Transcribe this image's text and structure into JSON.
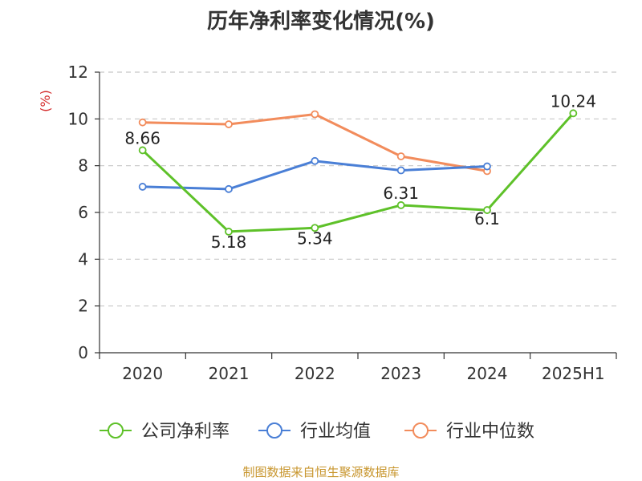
{
  "title": "历年净利率变化情况(%)",
  "source": "制图数据来自恒生聚源数据库",
  "chart_data": {
    "type": "line",
    "title": "历年净利率变化情况(%)",
    "ylabel": "(%)",
    "categories": [
      "2020",
      "2021",
      "2022",
      "2023",
      "2024",
      "2025H1"
    ],
    "ylim": [
      0,
      12
    ],
    "yticks": [
      0,
      2,
      4,
      6,
      8,
      10,
      12
    ],
    "grid": true,
    "legend_position": "bottom",
    "series": [
      {
        "name": "公司净利率",
        "color": "#5ec129",
        "values": [
          8.66,
          5.18,
          5.34,
          6.31,
          6.1,
          10.24
        ],
        "labels": [
          "8.66",
          "5.18",
          "5.34",
          "6.31",
          "6.1",
          "10.24"
        ]
      },
      {
        "name": "行业均值",
        "color": "#4a7fd6",
        "values": [
          7.1,
          7.0,
          8.2,
          7.8,
          7.97,
          null
        ]
      },
      {
        "name": "行业中位数",
        "color": "#f28c5c",
        "values": [
          9.85,
          9.77,
          10.2,
          8.4,
          7.77,
          null
        ]
      }
    ]
  }
}
